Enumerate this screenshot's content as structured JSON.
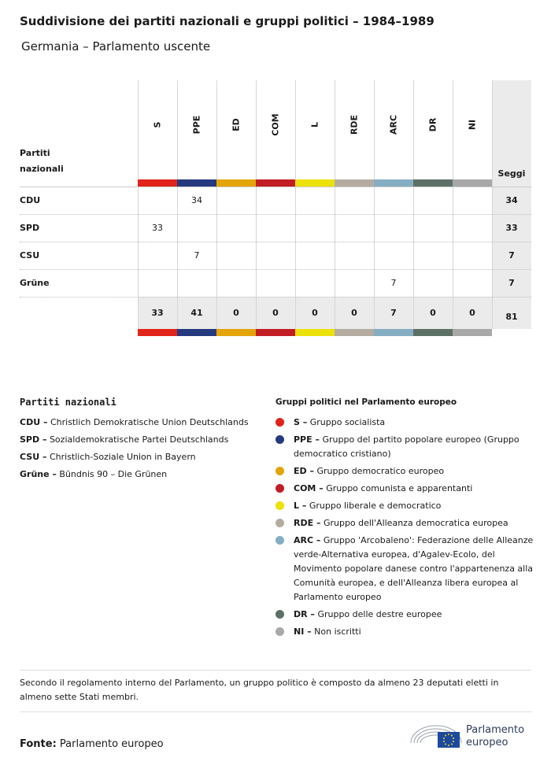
{
  "header": {
    "title": "Suddivisione dei partiti nazionali e gruppi politici – 1984–1989",
    "subtitle": "Germania – Parlamento uscente"
  },
  "table": {
    "corner_label": "Partiti nazionali",
    "total_label": "Seggi",
    "groups": [
      {
        "code": "S",
        "color": "#e2231a"
      },
      {
        "code": "PPE",
        "color": "#253a7e"
      },
      {
        "code": "ED",
        "color": "#e3a40c"
      },
      {
        "code": "COM",
        "color": "#c21d24"
      },
      {
        "code": "L",
        "color": "#ede10a"
      },
      {
        "code": "RDE",
        "color": "#b4aca1"
      },
      {
        "code": "ARC",
        "color": "#86aec2"
      },
      {
        "code": "DR",
        "color": "#5d7066"
      },
      {
        "code": "NI",
        "color": "#a8a8a8"
      }
    ],
    "rows": [
      {
        "party": "CDU",
        "cells": [
          null,
          34,
          null,
          null,
          null,
          null,
          null,
          null,
          null
        ],
        "total": 34
      },
      {
        "party": "SPD",
        "cells": [
          33,
          null,
          null,
          null,
          null,
          null,
          null,
          null,
          null
        ],
        "total": 33
      },
      {
        "party": "CSU",
        "cells": [
          null,
          7,
          null,
          null,
          null,
          null,
          null,
          null,
          null
        ],
        "total": 7
      },
      {
        "party": "Grüne",
        "cells": [
          null,
          null,
          null,
          null,
          null,
          null,
          7,
          null,
          null
        ],
        "total": 7
      }
    ],
    "totals": [
      33,
      41,
      0,
      0,
      0,
      0,
      7,
      0,
      0
    ],
    "grand_total": 81
  },
  "national_legend": {
    "heading": "Partiti nazionali",
    "items": [
      {
        "code": "CDU –",
        "text": "Christlich Demokratische Union Deutschlands"
      },
      {
        "code": "SPD –",
        "text": "Sozialdemokratische Partei Deutschlands"
      },
      {
        "code": "CSU –",
        "text": "Christlich-Soziale Union in Bayern"
      },
      {
        "code": "Grüne –",
        "text": "Bündnis 90 – Die Grünen"
      }
    ]
  },
  "group_legend": {
    "heading": "Gruppi politici nel Parlamento europeo",
    "items": [
      {
        "code": "S –",
        "text": "Gruppo socialista"
      },
      {
        "code": "PPE –",
        "text": "Gruppo del partito popolare europeo (Gruppo democratico cristiano)"
      },
      {
        "code": "ED –",
        "text": "Gruppo democratico europeo"
      },
      {
        "code": "COM –",
        "text": "Gruppo comunista e apparentanti"
      },
      {
        "code": "L –",
        "text": "Gruppo liberale e democratico"
      },
      {
        "code": "RDE –",
        "text": "Gruppo dell'Alleanza democratica europea"
      },
      {
        "code": "ARC –",
        "text": "Gruppo 'Arcobaleno': Federazione delle Alleanze verde-Alternativa europea, d'Agalev-Ecolo, del Movimento popolare danese contro l'appartenenza alla Comunità europea, e dell'Alleanza libera europea al Parlamento europeo"
      },
      {
        "code": "DR –",
        "text": "Gruppo delle destre europee"
      },
      {
        "code": "NI –",
        "text": "Non iscritti"
      }
    ]
  },
  "footer": {
    "note": "Secondo il regolamento interno del Parlamento, un gruppo politico è composto da almeno 23 deputati eletti in almeno sette Stati membri.",
    "source_label": "Fonte:",
    "source": "Parlamento europeo",
    "logo_text": "Parlamento europeo"
  }
}
